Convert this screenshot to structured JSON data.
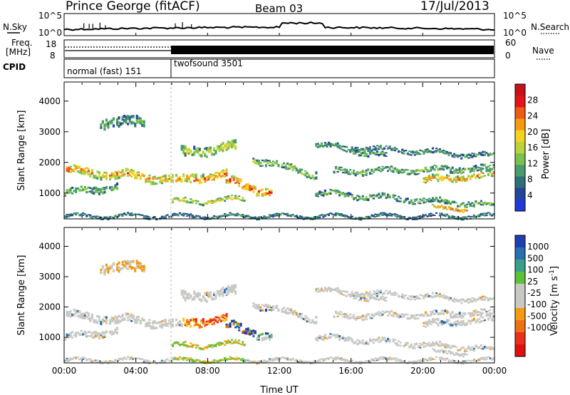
{
  "header": {
    "station": "Prince George (fitACF)",
    "beam": "Beam 03",
    "date": "17/Jul/2013"
  },
  "panels": {
    "nsky": {
      "label": "N.Sky",
      "ticks": [
        "10^5",
        "10^0"
      ]
    },
    "nsearch": {
      "label": "N.Search",
      "ticks": [
        "10^5",
        "10^0"
      ]
    },
    "freq": {
      "label_line1": "Freq.",
      "label_line2": "[MHz]",
      "ticks": [
        "18",
        "8"
      ]
    },
    "nave": {
      "label": "Nave",
      "ticks": [
        "60",
        "0"
      ]
    },
    "cpid": {
      "label": "CPID",
      "modes": [
        {
          "name": "normal (fast) 151",
          "start_hour": 0,
          "end_hour": 6
        },
        {
          "name": "twofsound 3501",
          "start_hour": 6,
          "end_hour": 24
        }
      ]
    }
  },
  "chart_data": [
    {
      "type": "heatmap",
      "title": "",
      "parameter": "Power",
      "ylabel": "Slant Range [km]",
      "xlabel": "",
      "x_range_hours": [
        0,
        24
      ],
      "ylim": [
        180,
        4600
      ],
      "y_ticks": [
        "1000",
        "2000",
        "3000",
        "4000"
      ],
      "colorbar": {
        "label": "Power [dB]",
        "ticks": [
          "4",
          "8",
          "12",
          "16",
          "20",
          "24",
          "28"
        ],
        "colors": [
          "#1f3ad8",
          "#22449a",
          "#2f6e74",
          "#4a9d6b",
          "#7ac150",
          "#bcd23a",
          "#f5d21f",
          "#f59a12",
          "#ef5a18",
          "#e3141b",
          "#c8101a"
        ]
      },
      "echo_bands": [
        {
          "start_h": 0.0,
          "end_h": 6.0,
          "range_km_start": 1750,
          "range_km_end": 1450,
          "width_km": 260,
          "peak_db": 22
        },
        {
          "start_h": 0.0,
          "end_h": 3.0,
          "range_km_start": 1000,
          "range_km_end": 1200,
          "width_km": 200,
          "peak_db": 12
        },
        {
          "start_h": 6.2,
          "end_h": 9.0,
          "range_km_start": 1400,
          "range_km_end": 1600,
          "width_km": 260,
          "peak_db": 25
        },
        {
          "start_h": 9.0,
          "end_h": 11.5,
          "range_km_start": 1400,
          "range_km_end": 1000,
          "width_km": 250,
          "peak_db": 27
        },
        {
          "start_h": 6.0,
          "end_h": 10.0,
          "range_km_start": 700,
          "range_km_end": 800,
          "width_km": 150,
          "peak_db": 18
        },
        {
          "start_h": 6.5,
          "end_h": 9.5,
          "range_km_start": 2300,
          "range_km_end": 2500,
          "width_km": 280,
          "peak_db": 16
        },
        {
          "start_h": 10.5,
          "end_h": 14.0,
          "range_km_start": 2100,
          "range_km_end": 1600,
          "width_km": 200,
          "peak_db": 14
        },
        {
          "start_h": 14.0,
          "end_h": 18.0,
          "range_km_start": 2600,
          "range_km_end": 2200,
          "width_km": 160,
          "peak_db": 10
        },
        {
          "start_h": 16.0,
          "end_h": 24.0,
          "range_km_start": 2500,
          "range_km_end": 2200,
          "width_km": 140,
          "peak_db": 9
        },
        {
          "start_h": 15.0,
          "end_h": 24.0,
          "range_km_start": 1700,
          "range_km_end": 1800,
          "width_km": 180,
          "peak_db": 12
        },
        {
          "start_h": 20.0,
          "end_h": 24.0,
          "range_km_start": 1400,
          "range_km_end": 1600,
          "width_km": 200,
          "peak_db": 22
        },
        {
          "start_h": 14.0,
          "end_h": 24.0,
          "range_km_start": 1000,
          "range_km_end": 600,
          "width_km": 160,
          "peak_db": 12
        },
        {
          "start_h": 20.5,
          "end_h": 22.5,
          "range_km_start": 500,
          "range_km_end": 500,
          "width_km": 120,
          "peak_db": 24
        },
        {
          "start_h": 2.0,
          "end_h": 4.5,
          "range_km_start": 3300,
          "range_km_end": 3300,
          "width_km": 300,
          "peak_db": 10
        },
        {
          "start_h": 0.0,
          "end_h": 24.0,
          "range_km_start": 250,
          "range_km_end": 250,
          "width_km": 90,
          "peak_db": 8
        }
      ]
    },
    {
      "type": "heatmap",
      "title": "",
      "parameter": "Velocity",
      "ylabel": "Slant Range [km]",
      "xlabel": "Time UT",
      "x_range_hours": [
        0,
        24
      ],
      "x_ticks": [
        "00:00",
        "04:00",
        "08:00",
        "12:00",
        "16:00",
        "20:00",
        "00:00"
      ],
      "ylim": [
        180,
        4600
      ],
      "y_ticks": [
        "1000",
        "2000",
        "3000",
        "4000"
      ],
      "colorbar": {
        "label": "Velocity [m s",
        "label_sup": "-1",
        "label_end": "]",
        "ticks": [
          "1000",
          "500",
          "100",
          "25",
          "-25",
          "-100",
          "-500",
          "-1000"
        ],
        "colors": [
          "#1f3fb0",
          "#2a6fae",
          "#3b9e8a",
          "#5cc23a",
          "#c8c8c4",
          "#c8c8c4",
          "#f59a12",
          "#f07018",
          "#e8301a",
          "#e01010"
        ]
      }
    }
  ]
}
